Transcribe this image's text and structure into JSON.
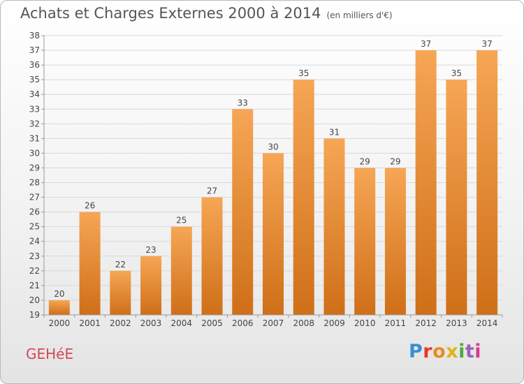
{
  "chart_data": {
    "type": "bar",
    "title": "Achats et Charges Externes 2000 à 2014",
    "subtitle": "(en milliers d'€)",
    "categories": [
      "2000",
      "2001",
      "2002",
      "2003",
      "2004",
      "2005",
      "2006",
      "2007",
      "2008",
      "2009",
      "2010",
      "2011",
      "2012",
      "2013",
      "2014"
    ],
    "values": [
      20,
      26,
      22,
      23,
      25,
      27,
      33,
      30,
      35,
      31,
      29,
      29,
      37,
      35,
      37
    ],
    "ylim": [
      19,
      38
    ],
    "yticks": [
      "19",
      "20",
      "21",
      "22",
      "23",
      "24",
      "25",
      "26",
      "27",
      "28",
      "29",
      "30",
      "31",
      "32",
      "33",
      "34",
      "35",
      "36",
      "37",
      "38"
    ],
    "grid": true,
    "colors": {
      "bar_top": "#f6a655",
      "bar_bottom": "#cf6f18",
      "grid": "#d8d8d8",
      "axis": "#999999",
      "label": "#444444"
    }
  },
  "footer": {
    "town": "GEHéE",
    "logo": "Proxiti"
  },
  "logo_colors": [
    "#3a8fd0",
    "#e6392b",
    "#ea8a21",
    "#e2b318",
    "#52a83a",
    "#9c62b8",
    "#d63a8a"
  ]
}
